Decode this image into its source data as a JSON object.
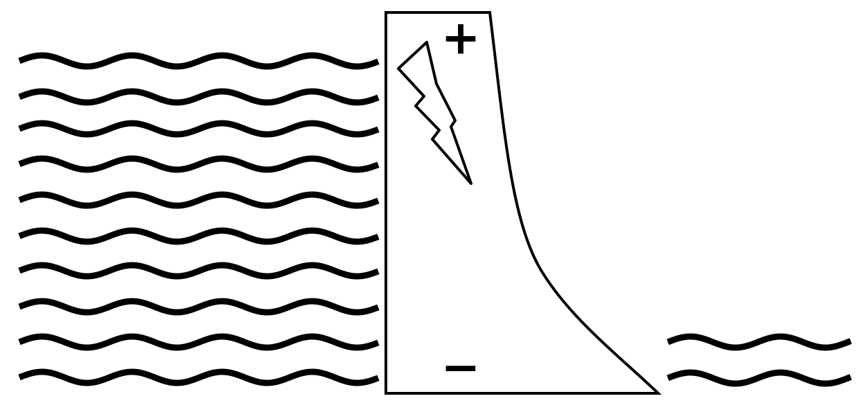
{
  "labels": {
    "top": "+",
    "bottom": "−"
  }
}
